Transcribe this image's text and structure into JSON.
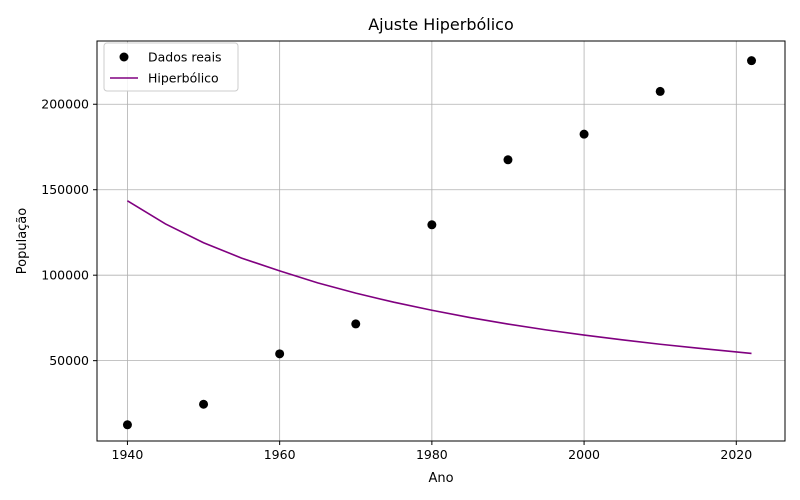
{
  "chart_data": {
    "type": "scatter",
    "title": "Ajuste Hiperbólico",
    "xlabel": "Ano",
    "ylabel": "População",
    "xlim": [
      1936,
      2026.4
    ],
    "ylim": [
      3000,
      237000
    ],
    "xticks": [
      1940,
      1960,
      1980,
      2000,
      2020
    ],
    "yticks": [
      50000,
      100000,
      150000,
      200000
    ],
    "grid": true,
    "legend_position": "upper-left",
    "series": [
      {
        "name": "Dados reais",
        "kind": "scatter",
        "color": "#000000",
        "x": [
          1940,
          1950,
          1960,
          1970,
          1980,
          1990,
          2000,
          2010,
          2022
        ],
        "y": [
          12500,
          24500,
          54000,
          71500,
          129500,
          167500,
          182500,
          207500,
          225500
        ]
      },
      {
        "name": "Hiperbólico",
        "kind": "line",
        "color": "#800080",
        "x": [
          1940,
          1945,
          1950,
          1955,
          1960,
          1965,
          1970,
          1975,
          1980,
          1985,
          1990,
          1995,
          2000,
          2005,
          2010,
          2015,
          2022
        ],
        "y": [
          143500,
          130000,
          119000,
          110000,
          102500,
          95500,
          89500,
          84200,
          79500,
          75200,
          71400,
          68000,
          65000,
          62200,
          59600,
          57300,
          54200
        ]
      }
    ]
  }
}
